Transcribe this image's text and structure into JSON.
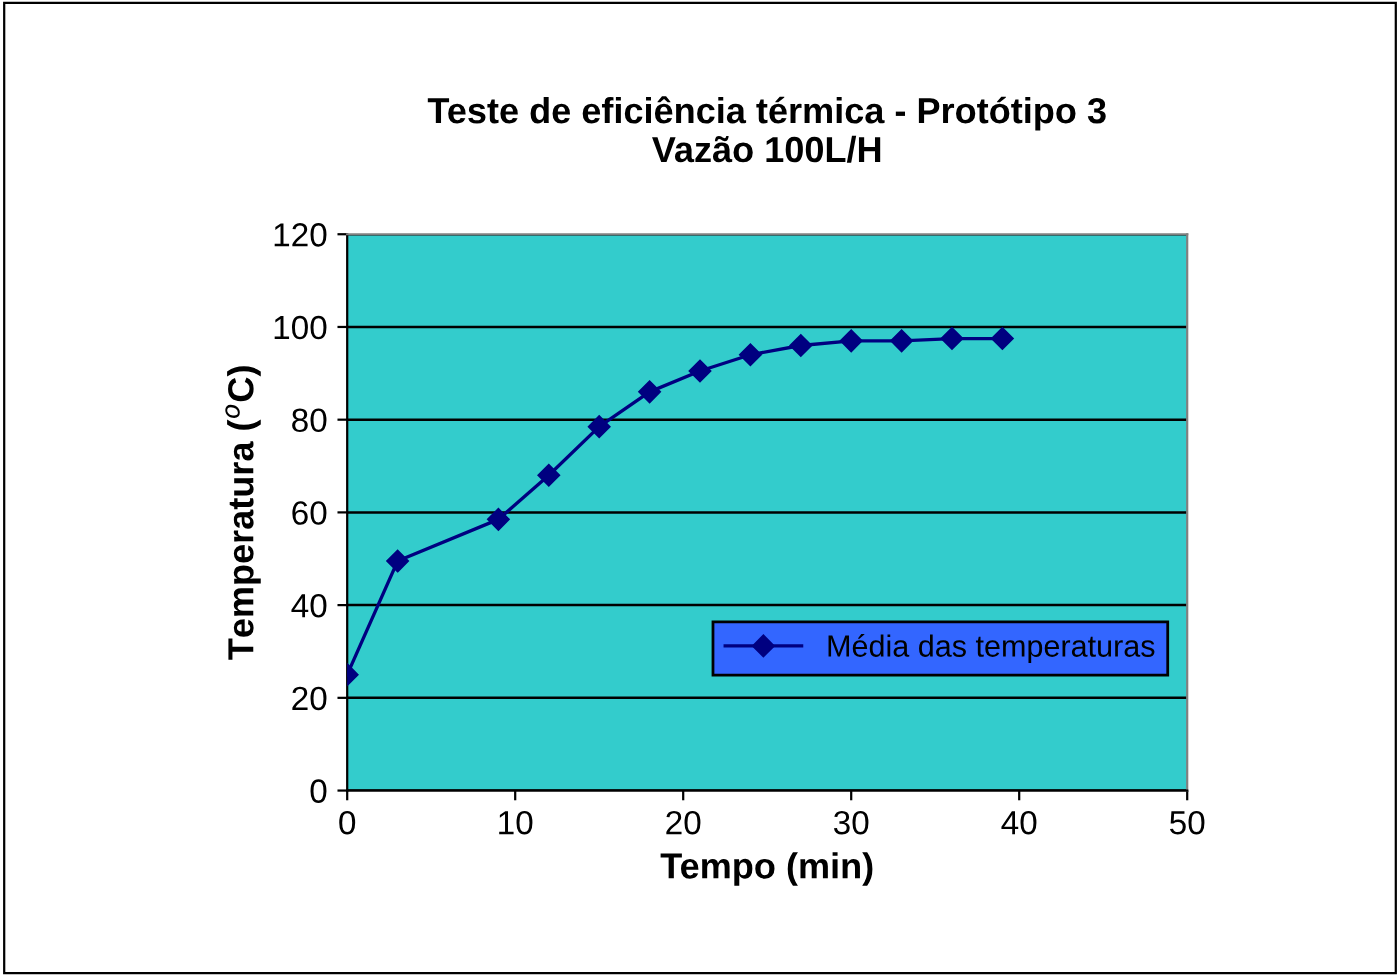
{
  "chart_data": {
    "type": "line",
    "title": "Teste de eficiência térmica - Protótipo 3\nVazão 100L/H",
    "xlabel": "Tempo (min)",
    "ylabel": "Temperatura ($^{o}$C)",
    "x": [
      0,
      3,
      9,
      12,
      15,
      18,
      21,
      24,
      27,
      30,
      33,
      36,
      39
    ],
    "series": [
      {
        "name": "Média das temperaturas",
        "color": "#000080",
        "values": [
          25,
          49.5,
          58.5,
          68,
          78.5,
          86,
          90.5,
          94,
          96,
          97,
          97,
          97.5,
          97.5
        ]
      }
    ],
    "xlim": [
      0,
      50
    ],
    "xticks": [
      0,
      10,
      20,
      30,
      40,
      50
    ],
    "ylim": [
      0,
      120
    ],
    "yticks": [
      0,
      20,
      40,
      60,
      80,
      100,
      120
    ],
    "grid": "y",
    "legend": "bottom right",
    "marker": "diamond",
    "line_style": "solid"
  }
}
